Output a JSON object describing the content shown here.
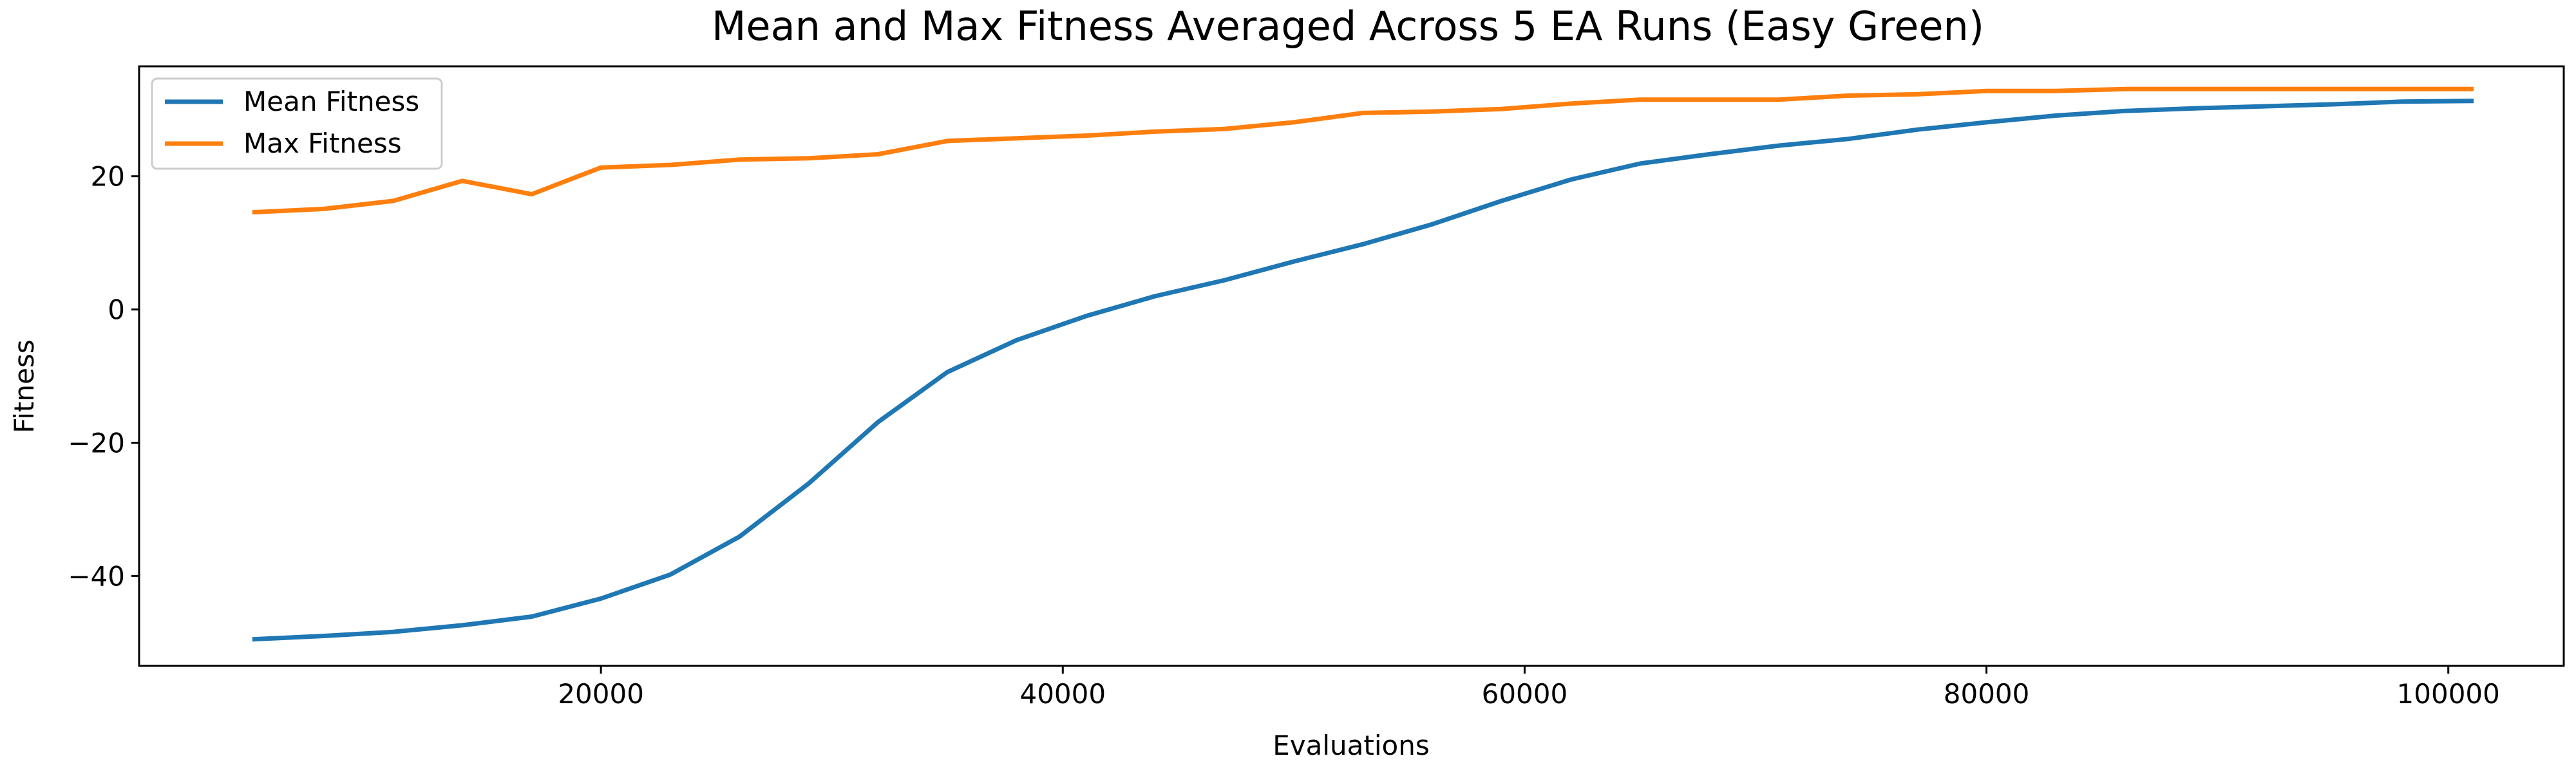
{
  "chart_data": {
    "type": "line",
    "title": "Mean and Max Fitness Averaged Across 5 EA Runs (Easy Green)",
    "xlabel": "Evaluations",
    "ylabel": "Fitness",
    "xlim": [
      0,
      105000
    ],
    "ylim": [
      -53.5,
      36.5
    ],
    "xticks": [
      20000,
      40000,
      60000,
      80000,
      100000
    ],
    "yticks": [
      -40,
      -20,
      0,
      20
    ],
    "grid": false,
    "legend_position": "top-left",
    "x": [
      5000,
      8000,
      11000,
      14000,
      17000,
      20000,
      23000,
      26000,
      29000,
      32000,
      35000,
      38000,
      41000,
      44000,
      47000,
      50000,
      53000,
      56000,
      59000,
      62000,
      65000,
      68000,
      71000,
      74000,
      77000,
      80000,
      83000,
      86000,
      89000,
      92000,
      95000,
      98000,
      101000
    ],
    "series": [
      {
        "name": "Mean Fitness",
        "color": "#1f77b4",
        "values": [
          -49.5,
          -49.0,
          -48.4,
          -47.4,
          -46.1,
          -43.4,
          -39.8,
          -34.1,
          -26.1,
          -16.9,
          -9.4,
          -4.6,
          -1.0,
          2.0,
          4.4,
          7.2,
          9.8,
          12.8,
          16.3,
          19.5,
          21.9,
          23.3,
          24.6,
          25.6,
          27.0,
          28.1,
          29.1,
          29.8,
          30.2,
          30.5,
          30.8,
          31.2,
          31.3
        ]
      },
      {
        "name": "Max Fitness",
        "color": "#ff7f0e",
        "values": [
          14.6,
          15.1,
          16.3,
          19.3,
          17.3,
          21.3,
          21.7,
          22.5,
          22.7,
          23.3,
          25.3,
          25.7,
          26.1,
          26.7,
          27.1,
          28.1,
          29.5,
          29.7,
          30.1,
          30.9,
          31.5,
          31.5,
          31.5,
          32.1,
          32.3,
          32.8,
          32.8,
          33.1,
          33.1,
          33.1,
          33.1,
          33.1,
          33.1
        ]
      }
    ]
  }
}
